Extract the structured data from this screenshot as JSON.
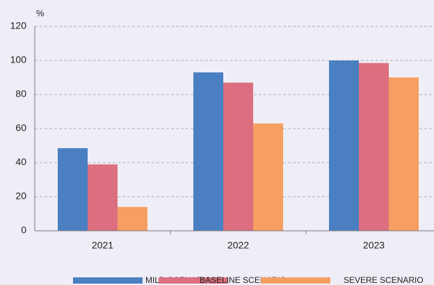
{
  "chart_data": {
    "type": "bar",
    "y_label": "%",
    "categories": [
      "2021",
      "2022",
      "2023"
    ],
    "series": [
      {
        "name": "MILD SCENARIO",
        "color": "#4a7fc2",
        "values": [
          48.5,
          93,
          100
        ]
      },
      {
        "name": "BASELINE SCENARIO",
        "color": "#db6f7f",
        "values": [
          39,
          87,
          98.5
        ]
      },
      {
        "name": "SEVERE SCENARIO",
        "color": "#f79e62",
        "values": [
          14,
          63,
          90
        ]
      }
    ],
    "ylim": [
      0,
      120
    ],
    "yticks": [
      0,
      20,
      40,
      60,
      80,
      100,
      120
    ],
    "grid": true,
    "legend": "bottom"
  }
}
